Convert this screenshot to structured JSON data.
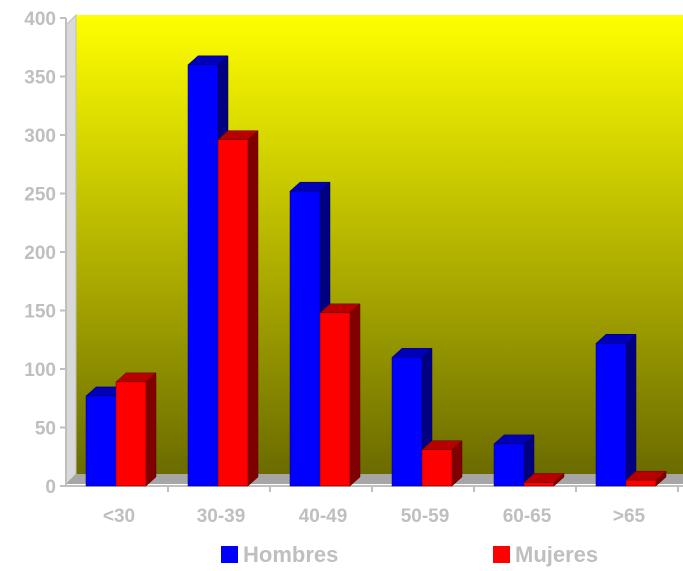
{
  "chart_data": {
    "type": "bar",
    "title": "",
    "xlabel": "",
    "ylabel": "",
    "categories": [
      "<30",
      "30-39",
      "40-49",
      "50-59",
      "60-65",
      ">65"
    ],
    "series": [
      {
        "name": "Hombres",
        "color": "#0000ff",
        "values": [
          77,
          360,
          252,
          110,
          36,
          122
        ]
      },
      {
        "name": "Mujeres",
        "color": "#ff0000",
        "values": [
          89,
          296,
          148,
          31,
          3,
          5
        ]
      }
    ],
    "ylim": [
      0,
      400
    ],
    "yticks": [
      "0",
      "50",
      "100",
      "150",
      "200",
      "250",
      "300",
      "350",
      "400"
    ],
    "grid": false,
    "legend_position": "bottom",
    "background_gradient": [
      "#ffff00",
      "#6b6b00"
    ],
    "style": "3d-clustered-column"
  }
}
